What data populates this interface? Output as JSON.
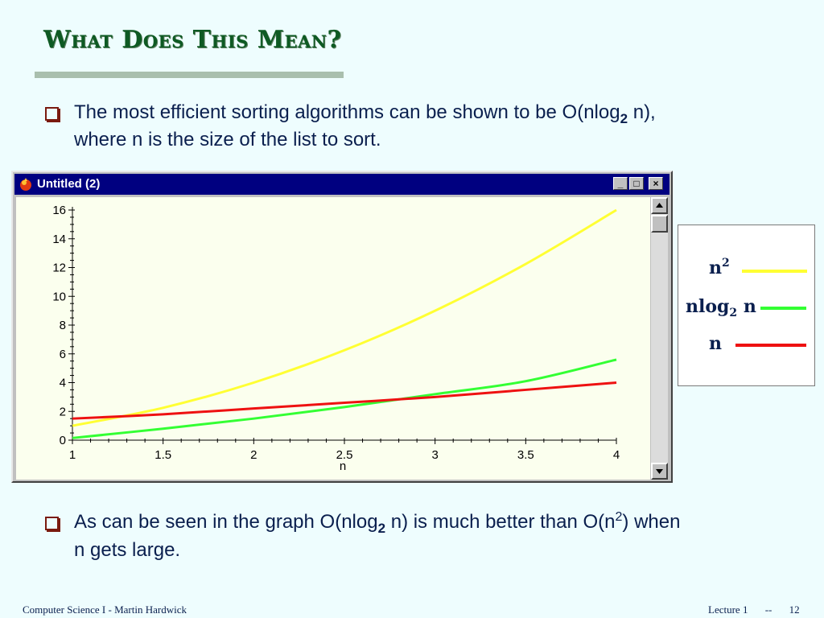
{
  "slide": {
    "title": "What Does This Mean?",
    "bullet1": {
      "before": "The most efficient sorting algorithms can be shown to be O(nlog",
      "sub": "2",
      "after": " n),",
      "line2": "where n is the size of the list to sort."
    },
    "bullet2": {
      "before": "As can be seen in the graph O(nlog",
      "sub": "2",
      "mid": " n) is much better than O(n",
      "sup": "2",
      "after": ") when",
      "line2": "n gets large."
    },
    "footer": {
      "left": "Computer Science I - Martin Hardwick",
      "lecture": "Lecture 1",
      "sep": "--",
      "page": "12"
    }
  },
  "window": {
    "title": "Untitled (2)",
    "minimize_glyph": "_",
    "maximize_glyph": "□",
    "close_glyph": "×",
    "icons": [
      "app-icon",
      "minimize-icon",
      "maximize-icon",
      "close-icon",
      "scroll-up-icon",
      "scroll-down-icon"
    ]
  },
  "legend": {
    "items": [
      {
        "label": "n",
        "sup": "2",
        "color": "#FFFF33"
      },
      {
        "label": "nlog",
        "sub": "2",
        "suffix": " n",
        "color": "#33FF33"
      },
      {
        "label": "n",
        "color": "#EE1111"
      }
    ]
  },
  "chart_data": {
    "type": "line",
    "xlabel": "n",
    "ylabel": "",
    "xlim": [
      1,
      4
    ],
    "ylim": [
      0,
      16
    ],
    "xticks": [
      "1",
      "1.5",
      "2",
      "2.5",
      "3",
      "3.5",
      "4"
    ],
    "yticks": [
      "0",
      "2",
      "4",
      "6",
      "8",
      "10",
      "12",
      "14",
      "16"
    ],
    "grid": false,
    "legend_placement": "outside-right",
    "series": [
      {
        "name": "n²",
        "color": "#FFFF33",
        "x": [
          1,
          1.5,
          2,
          2.5,
          3,
          3.5,
          4
        ],
        "y": [
          1,
          2.25,
          4,
          6.25,
          9,
          12.25,
          16
        ]
      },
      {
        "name": "nlog₂ n",
        "color": "#33FF33",
        "x": [
          1,
          1.5,
          2,
          2.5,
          3,
          3.5,
          4
        ],
        "y": [
          0.15,
          0.8,
          1.5,
          2.3,
          3.2,
          4.1,
          5.6
        ]
      },
      {
        "name": "n",
        "color": "#EE1111",
        "x": [
          1,
          1.5,
          2,
          2.5,
          3,
          3.5,
          4
        ],
        "y": [
          1.5,
          1.8,
          2.2,
          2.6,
          3.0,
          3.5,
          4.0
        ]
      }
    ]
  }
}
